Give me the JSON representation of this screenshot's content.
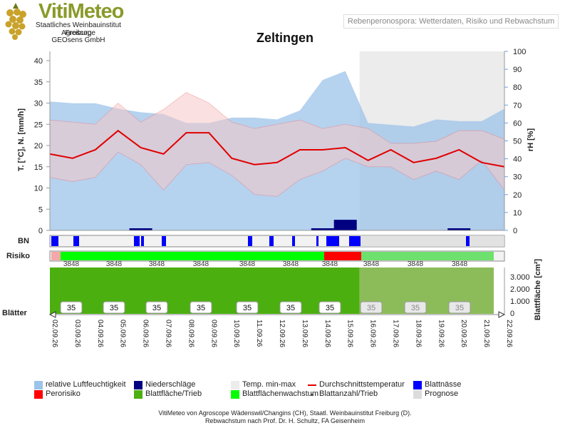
{
  "app": {
    "logo_title": "VitiMeteo",
    "logo_lines": [
      "Staatliches Weinbauinstitut Freiburg",
      "Agroscope",
      "GEOsens GmbH"
    ],
    "header_title": "Rebenperonospora: Wetterdaten, Risiko und Rebwachstum",
    "station": "Zeltingen"
  },
  "axes": {
    "left_label": "T. [°C], N. [mm/h]",
    "right_label": "rH [%]",
    "left_ticks": [
      "40",
      "35",
      "30",
      "25",
      "20",
      "15",
      "10",
      "5",
      "0"
    ],
    "right_ticks": [
      "100",
      "90",
      "80",
      "70",
      "60",
      "50",
      "40",
      "30",
      "20",
      "10",
      "0"
    ],
    "leaf_label": "Blattfläche [cm²]",
    "leaf_ticks": [
      "3.000",
      "2.000",
      "1.000",
      "0"
    ]
  },
  "rows": {
    "bn": "BN",
    "risiko": "Risiko",
    "blaetter": "Blätter"
  },
  "colors": {
    "humidity": "#9cc3ea",
    "rain": "#000080",
    "temp_band": "#f6c8c8",
    "temp_avg": "#e00000",
    "leaf_wet": "#0000ff",
    "risk": "#ff0000",
    "leaf_area": "#4caf10",
    "leaf_growth": "#00ff00",
    "forecast": "#dcdcdc"
  },
  "chart_data": {
    "type": "line",
    "dates": [
      "02.09.26",
      "03.09.26",
      "04.09.26",
      "05.09.26",
      "06.09.26",
      "07.09.26",
      "08.09.26",
      "09.09.26",
      "10.09.26",
      "11.09.26",
      "12.09.26",
      "13.09.26",
      "14.09.26",
      "15.09.26",
      "16.09.26",
      "17.09.26",
      "18.09.26",
      "19.09.26",
      "20.09.26",
      "21.09.26",
      "22.09.26"
    ],
    "forecast_start": "16.09.26",
    "series": [
      {
        "name": "relative Luftfeuchtigkeit",
        "axis": "rH",
        "values": [
          72,
          71,
          71,
          68,
          66,
          65,
          60,
          60,
          63,
          63,
          62,
          67,
          84,
          89,
          60,
          59,
          58,
          62,
          61,
          61,
          68
        ]
      },
      {
        "name": "Durchschnittstemperatur",
        "axis": "T",
        "values": [
          18,
          17,
          19,
          23.5,
          19.5,
          18,
          23,
          23,
          17,
          15.5,
          16,
          19,
          19,
          19.5,
          16.5,
          19,
          16,
          17,
          19,
          16,
          15
        ]
      },
      {
        "name": "Temp. min-max (max)",
        "axis": "T",
        "values": [
          26,
          25.5,
          25,
          30,
          25.5,
          28.5,
          32.5,
          30,
          25.5,
          24,
          25,
          26,
          24,
          25,
          24,
          20.5,
          20.5,
          21,
          23.5,
          23.5,
          21.5
        ]
      },
      {
        "name": "Temp. min-max (min)",
        "axis": "T",
        "values": [
          12.5,
          11.5,
          12.5,
          18.5,
          15.5,
          9.5,
          15.5,
          16,
          13,
          8.5,
          8,
          12,
          14,
          17,
          15,
          15,
          12,
          14,
          12,
          16.5,
          9.5
        ]
      },
      {
        "name": "Niederschläge",
        "axis": "T",
        "values": [
          0,
          0,
          0,
          0,
          0.5,
          0,
          0,
          0,
          0,
          0,
          0,
          0,
          0.5,
          2.5,
          0,
          0,
          0,
          0,
          0.5,
          0,
          0
        ]
      }
    ],
    "leaf_count": [
      "35",
      "35",
      "35",
      "35",
      "35",
      "35",
      "35",
      "35",
      "35",
      "35"
    ],
    "leaf_count_labels": [
      "3848",
      "3848",
      "3848",
      "3848",
      "3848",
      "3848",
      "3848",
      "3848",
      "3848",
      "3848"
    ]
  },
  "legend": [
    {
      "label": "relative Luftfeuchtigkeit",
      "color": "#9cc3ea"
    },
    {
      "label": "Niederschläge",
      "color": "#000080"
    },
    {
      "label": "Temp. min-max",
      "color": "#ececec"
    },
    {
      "label": "Durchschnittstemperatur",
      "color": "#e00000"
    },
    {
      "label": "Blattnässe",
      "color": "#0000ff"
    },
    {
      "label": "Perorisiko",
      "color": "#ff0000"
    },
    {
      "label": "Blattfläche/Trieb",
      "color": "#4caf10"
    },
    {
      "label": "Blattflächenwachstum",
      "color": "#00ff00"
    },
    {
      "label": "Blattanzahl/Trieb",
      "color": "#555555"
    },
    {
      "label": "Prognose",
      "color": "#dcdcdc"
    }
  ],
  "footer": {
    "line1": "VitiMeteo von Agroscope Wädenswil/Changins (CH), Staatl. Weinbauinstitut Freiburg (D).",
    "line2": "Rebwachstum nach Prof. Dr. H. Schultz, FA Geisenheim"
  }
}
